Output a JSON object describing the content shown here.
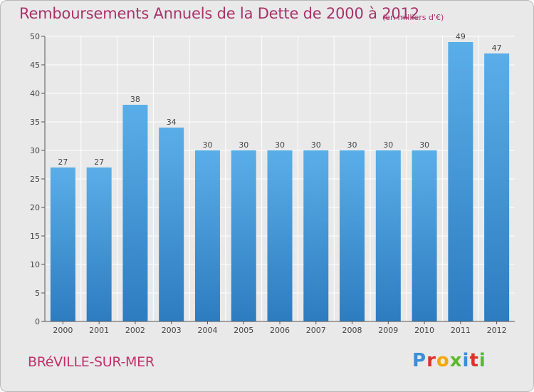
{
  "chart_data": {
    "type": "bar",
    "title": "Remboursements Annuels de la Dette de 2000 à 2012",
    "subtitle": "(en milliers d'€)",
    "categories": [
      "2000",
      "2001",
      "2002",
      "2003",
      "2004",
      "2005",
      "2006",
      "2007",
      "2008",
      "2009",
      "2010",
      "2011",
      "2012"
    ],
    "values": [
      27,
      27,
      38,
      34,
      30,
      30,
      30,
      30,
      30,
      30,
      30,
      49,
      47
    ],
    "data_labels": [
      "27",
      "27",
      "38",
      "34",
      "30",
      "30",
      "30",
      "30",
      "30",
      "30",
      "30",
      "49",
      "47"
    ],
    "ylim": [
      0,
      50
    ],
    "yticks": [
      0,
      5,
      10,
      15,
      20,
      25,
      30,
      35,
      40,
      45,
      50
    ],
    "ytick_labels": [
      "0",
      "5",
      "10",
      "15",
      "20",
      "25",
      "30",
      "35",
      "40",
      "45",
      "50"
    ],
    "grid": true,
    "legend": "none",
    "colors": {
      "bar_top": "#5aaee8",
      "bar_bottom": "#2e7cc0",
      "grid": "#ffffff",
      "axis": "#555555",
      "title": "#a8326a",
      "commune": "#c2306a",
      "background": "#e9e9e9"
    }
  },
  "footer": {
    "commune": "BRéVILLE-SUR-MER"
  },
  "logo": {
    "letters": [
      "P",
      "r",
      "o",
      "x",
      "i",
      "t",
      "i"
    ],
    "colors": [
      "#3b8ed8",
      "#e0302a",
      "#f5a800",
      "#5cb82e",
      "#3b8ed8",
      "#e0302a",
      "#5cb82e"
    ]
  }
}
